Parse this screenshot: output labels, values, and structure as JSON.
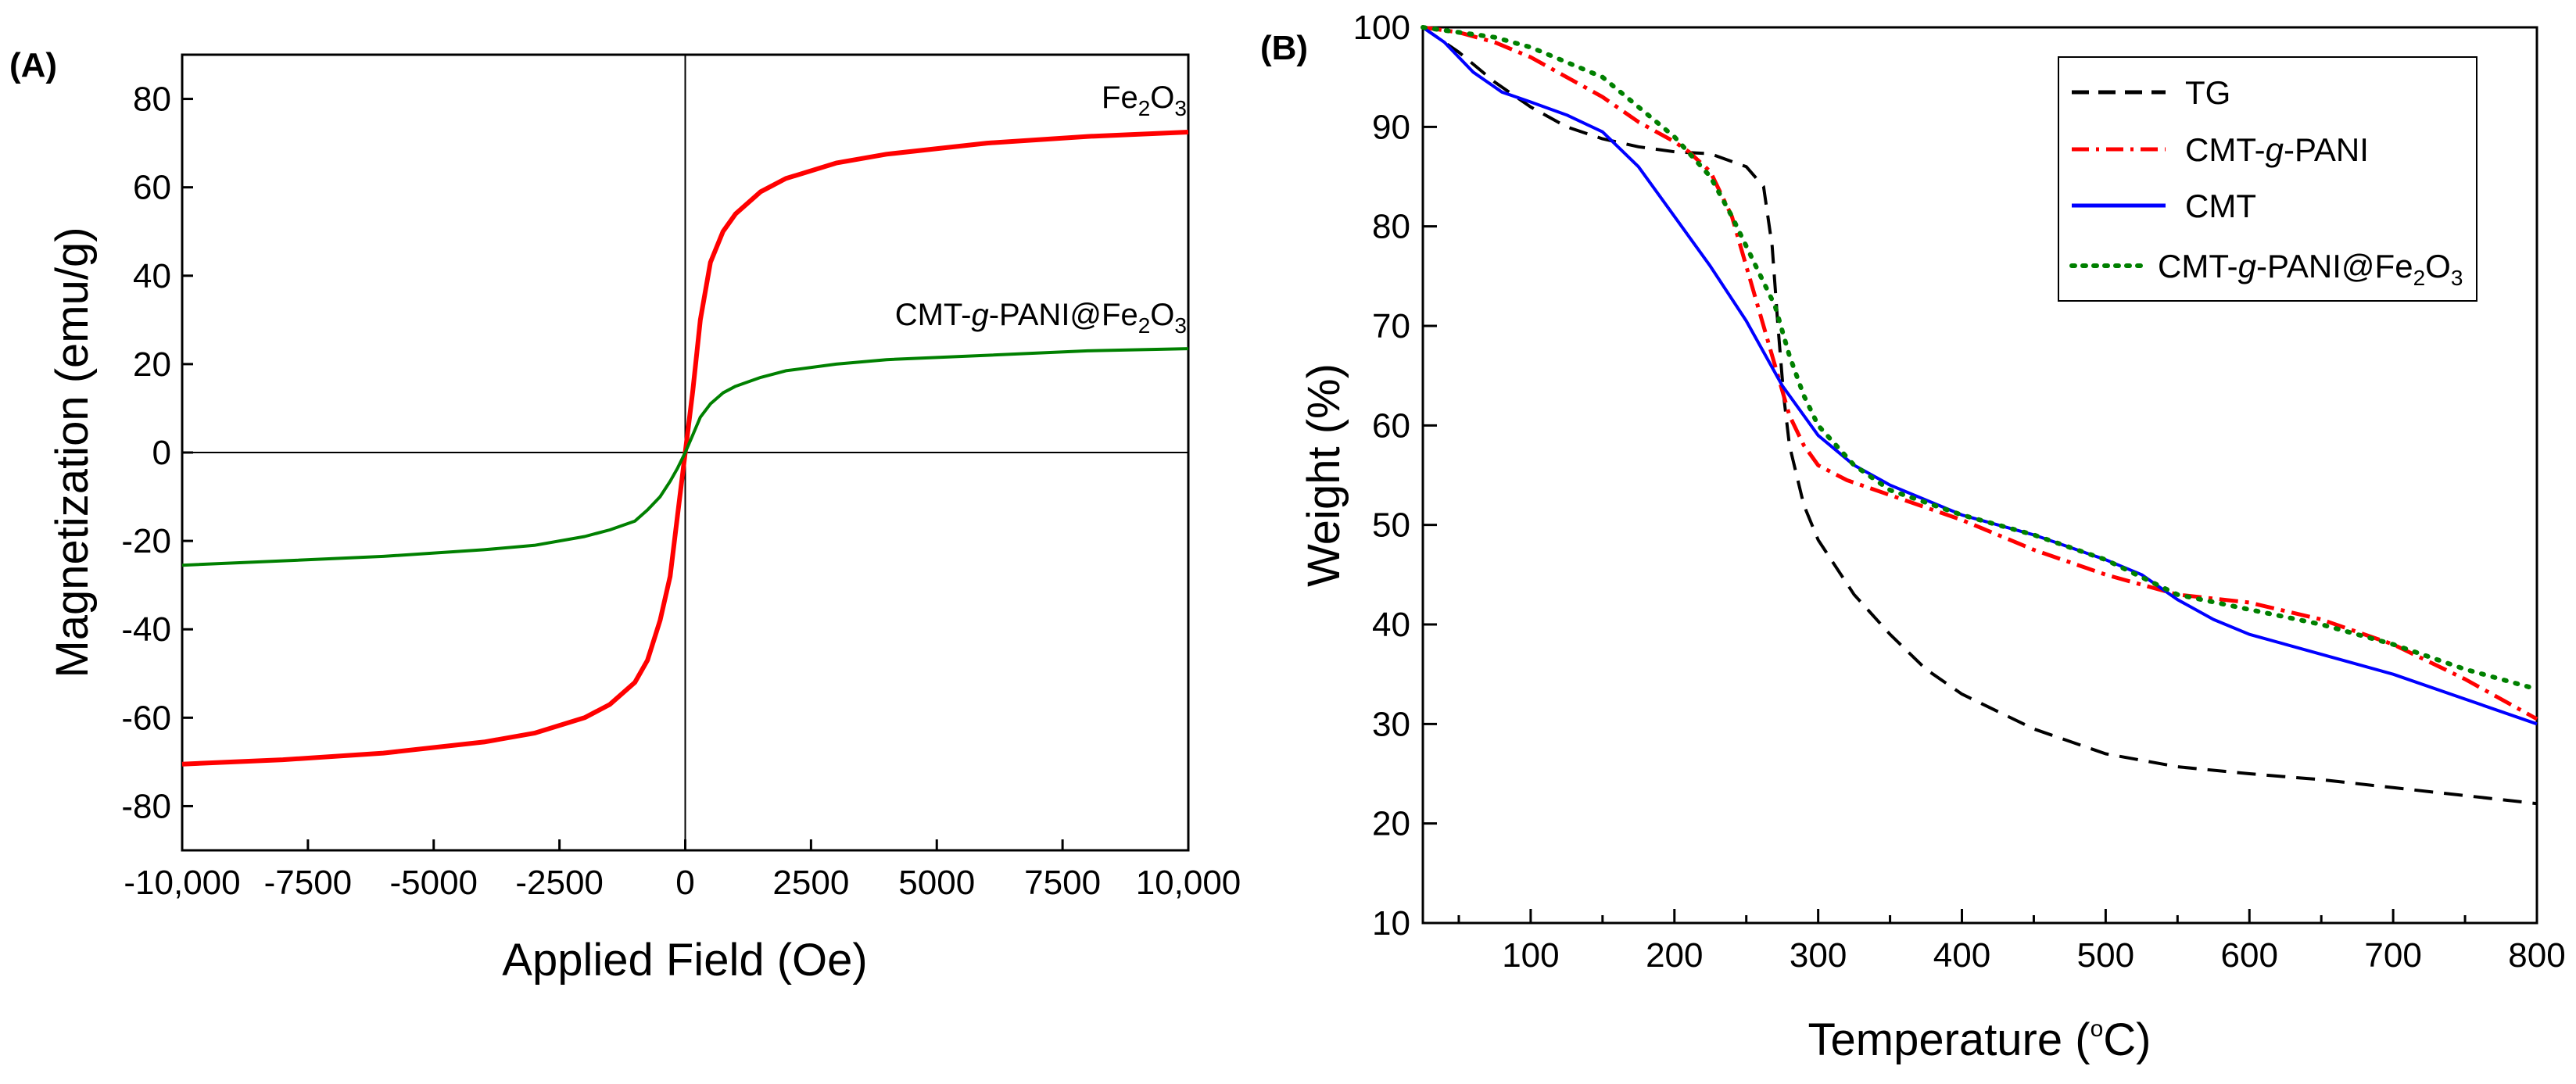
{
  "chart_data": [
    {
      "type": "line",
      "panel_label": "(A)",
      "xlabel": "Applied Field (Oe)",
      "ylabel": "Magnetization (emu/g)",
      "xlim": [
        -10000,
        10000
      ],
      "ylim": [
        -90,
        90
      ],
      "xticks": [
        -10000,
        -7500,
        -5000,
        -2500,
        0,
        2500,
        5000,
        7500,
        10000
      ],
      "xtick_labels": [
        "-10,000",
        "-7500",
        "-5000",
        "-2500",
        "0",
        "2500",
        "5000",
        "7500",
        "10,000"
      ],
      "yticks": [
        -80,
        -60,
        -40,
        -20,
        0,
        20,
        40,
        60,
        80
      ],
      "ytick_labels": [
        "-80",
        "-60",
        "-40",
        "-20",
        "0",
        "20",
        "40",
        "60",
        "80"
      ],
      "series": [
        {
          "name": "Fe2O3",
          "label_text": "Fe",
          "label_sub": "2",
          "label_text2": "O",
          "label_sub2": "3",
          "color": "#ff0000",
          "x": [
            -10000,
            -8000,
            -6000,
            -4000,
            -3000,
            -2000,
            -1500,
            -1000,
            -750,
            -500,
            -300,
            -150,
            0,
            150,
            300,
            500,
            750,
            1000,
            1500,
            2000,
            3000,
            4000,
            6000,
            8000,
            10000
          ],
          "y": [
            -70.5,
            -69.5,
            -68,
            -65.5,
            -63.5,
            -60,
            -57,
            -52,
            -47,
            -38,
            -28,
            -14,
            0,
            14,
            30,
            43,
            50,
            54,
            59,
            62,
            65.5,
            67.5,
            70,
            71.5,
            72.5
          ]
        },
        {
          "name": "CMT-g-PANI@Fe2O3",
          "label_text": "CMT-",
          "label_italic": "g",
          "label_text2": "-PANI@Fe",
          "label_sub": "2",
          "label_text3": "O",
          "label_sub2": "3",
          "color": "#008000",
          "x": [
            -10000,
            -8000,
            -6000,
            -4000,
            -3000,
            -2000,
            -1500,
            -1000,
            -750,
            -500,
            -300,
            -150,
            0,
            150,
            300,
            500,
            750,
            1000,
            1500,
            2000,
            3000,
            4000,
            6000,
            8000,
            10000
          ],
          "y": [
            -25.5,
            -24.5,
            -23.5,
            -22,
            -21,
            -19,
            -17.5,
            -15.5,
            -13,
            -10,
            -6.5,
            -3.5,
            0,
            4,
            8,
            11,
            13.5,
            15,
            17,
            18.5,
            20,
            21,
            22,
            23,
            23.5
          ]
        }
      ]
    },
    {
      "type": "line",
      "panel_label": "(B)",
      "xlabel_text": "Temperature (",
      "xlabel_sup": "o",
      "xlabel_text2": "C)",
      "ylabel": "Weight (%)",
      "xlim": [
        25,
        800
      ],
      "ylim": [
        10,
        100
      ],
      "xticks": [
        100,
        200,
        300,
        400,
        500,
        600,
        700,
        800
      ],
      "xtick_labels": [
        "100",
        "200",
        "300",
        "400",
        "500",
        "600",
        "700",
        "800"
      ],
      "yticks": [
        10,
        20,
        30,
        40,
        50,
        60,
        70,
        80,
        90,
        100
      ],
      "ytick_labels": [
        "10",
        "20",
        "30",
        "40",
        "50",
        "60",
        "70",
        "80",
        "90",
        "100"
      ],
      "legend": "top-right",
      "series": [
        {
          "name": "TG",
          "legend_text": "TG",
          "color": "#000000",
          "dash": "dashed",
          "x": [
            25,
            50,
            75,
            100,
            125,
            150,
            175,
            200,
            225,
            250,
            262,
            268,
            272,
            276,
            280,
            285,
            290,
            300,
            325,
            350,
            375,
            400,
            450,
            500,
            550,
            600,
            650,
            700,
            750,
            800
          ],
          "y": [
            100,
            97.5,
            94.5,
            92,
            90,
            88.8,
            88,
            87.5,
            87.3,
            86,
            84,
            78,
            70,
            63,
            58,
            55,
            52,
            48.5,
            43,
            39,
            35.5,
            33,
            29.5,
            27,
            25.7,
            25,
            24.4,
            23.6,
            22.8,
            22
          ]
        },
        {
          "name": "CMT-g-PANI",
          "legend_text": "CMT-",
          "legend_italic": "g",
          "legend_text2": "-PANI",
          "color": "#ff0000",
          "dash": "dashdot",
          "x": [
            25,
            50,
            75,
            100,
            125,
            150,
            175,
            200,
            210,
            225,
            240,
            250,
            260,
            270,
            280,
            290,
            300,
            320,
            350,
            400,
            450,
            500,
            550,
            600,
            650,
            700,
            750,
            800
          ],
          "y": [
            100,
            99.5,
            98.5,
            97,
            95,
            93,
            90.5,
            88.5,
            87.5,
            85.5,
            81,
            76,
            71,
            66,
            61,
            58,
            56,
            54.5,
            53,
            50.5,
            47.5,
            45,
            43,
            42.2,
            40.5,
            38,
            34.5,
            30.5
          ]
        },
        {
          "name": "CMT",
          "legend_text": "CMT",
          "color": "#0000ff",
          "dash": "solid",
          "x": [
            25,
            40,
            60,
            80,
            100,
            125,
            150,
            175,
            200,
            225,
            250,
            275,
            300,
            325,
            350,
            400,
            450,
            500,
            525,
            550,
            575,
            600,
            650,
            700,
            750,
            800
          ],
          "y": [
            100,
            98.5,
            95.5,
            93.5,
            92.5,
            91.2,
            89.5,
            86,
            81,
            76,
            70.5,
            64,
            59,
            56,
            54,
            51,
            49,
            46.5,
            45,
            42.5,
            40.5,
            39,
            37,
            35,
            32.5,
            30
          ]
        },
        {
          "name": "CMT-g-PANI@Fe2O3",
          "legend_text": "CMT-",
          "legend_italic": "g",
          "legend_text2": "-PANI@Fe",
          "legend_sub": "2",
          "legend_text3": "O",
          "legend_sub2": "3",
          "color": "#008000",
          "dash": "dotted",
          "x": [
            25,
            50,
            75,
            100,
            125,
            150,
            175,
            200,
            225,
            240,
            250,
            260,
            270,
            280,
            290,
            300,
            325,
            350,
            400,
            450,
            500,
            550,
            600,
            650,
            700,
            750,
            800
          ],
          "y": [
            100,
            99.5,
            99,
            98,
            96.5,
            95,
            92,
            89,
            85,
            81,
            78,
            75,
            72,
            67,
            63,
            60,
            56,
            53.5,
            51,
            49,
            46.5,
            43,
            41.5,
            40,
            38,
            35.5,
            33.5
          ]
        }
      ]
    }
  ]
}
